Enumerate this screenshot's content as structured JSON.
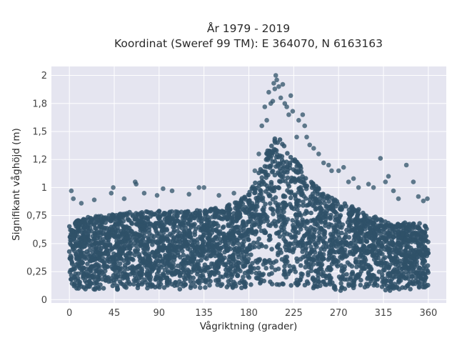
{
  "chart_data": {
    "type": "scatter",
    "title_line1": "År 1979 - 2019",
    "title_line2": "Koordinat (Sweref 99 TM): E 364070, N 6163163",
    "xlabel": "Vågriktning (grader)",
    "ylabel": "Signifikant våghöjd (m)",
    "xlim": [
      -18,
      378
    ],
    "ylim": [
      -0.03,
      2.08
    ],
    "x_ticks": [
      0,
      45,
      90,
      135,
      180,
      225,
      270,
      315,
      360
    ],
    "x_tick_labels": [
      "0",
      "45",
      "90",
      "135",
      "180",
      "225",
      "270",
      "315",
      "360"
    ],
    "y_ticks": [
      0,
      0.25,
      0.5,
      0.75,
      1,
      1.25,
      1.5,
      1.75,
      2
    ],
    "y_tick_labels": [
      "0",
      "0,25",
      "0,5",
      "0,75",
      "1",
      "1,2",
      "1,5",
      "1,8",
      "2"
    ],
    "grid": true,
    "legend": "none",
    "marker_color": "#2f5168",
    "background_color": "#e5e5f0",
    "envelope": {
      "x": [
        0,
        20,
        45,
        60,
        90,
        120,
        150,
        170,
        180,
        190,
        200,
        207,
        215,
        225,
        240,
        260,
        280,
        300,
        320,
        345,
        360
      ],
      "lower": [
        0.1,
        0.09,
        0.09,
        0.09,
        0.09,
        0.09,
        0.09,
        0.09,
        0.1,
        0.1,
        0.1,
        0.1,
        0.1,
        0.1,
        0.09,
        0.08,
        0.08,
        0.08,
        0.08,
        0.09,
        0.1
      ],
      "upper": [
        0.68,
        0.74,
        0.76,
        0.78,
        0.79,
        0.8,
        0.82,
        0.88,
        0.95,
        1.15,
        1.38,
        1.45,
        1.42,
        1.28,
        1.08,
        0.92,
        0.85,
        0.76,
        0.7,
        0.68,
        0.68
      ]
    },
    "outliers": [
      {
        "x": 2,
        "y": 0.97
      },
      {
        "x": 4,
        "y": 0.9
      },
      {
        "x": 12,
        "y": 0.86
      },
      {
        "x": 25,
        "y": 0.89
      },
      {
        "x": 42,
        "y": 0.95
      },
      {
        "x": 44,
        "y": 1.0
      },
      {
        "x": 55,
        "y": 0.9
      },
      {
        "x": 66,
        "y": 1.05
      },
      {
        "x": 67,
        "y": 1.03
      },
      {
        "x": 75,
        "y": 0.95
      },
      {
        "x": 88,
        "y": 0.93
      },
      {
        "x": 94,
        "y": 0.99
      },
      {
        "x": 103,
        "y": 0.97
      },
      {
        "x": 120,
        "y": 0.94
      },
      {
        "x": 130,
        "y": 1.0
      },
      {
        "x": 135,
        "y": 1.0
      },
      {
        "x": 150,
        "y": 0.93
      },
      {
        "x": 165,
        "y": 0.95
      },
      {
        "x": 186,
        "y": 1.15
      },
      {
        "x": 190,
        "y": 1.3
      },
      {
        "x": 193,
        "y": 1.55
      },
      {
        "x": 196,
        "y": 1.72
      },
      {
        "x": 198,
        "y": 1.6
      },
      {
        "x": 200,
        "y": 1.85
      },
      {
        "x": 202,
        "y": 1.75
      },
      {
        "x": 204,
        "y": 1.77
      },
      {
        "x": 205,
        "y": 1.93
      },
      {
        "x": 206,
        "y": 1.88
      },
      {
        "x": 207,
        "y": 2.0
      },
      {
        "x": 208,
        "y": 1.96
      },
      {
        "x": 210,
        "y": 1.9
      },
      {
        "x": 212,
        "y": 1.8
      },
      {
        "x": 214,
        "y": 1.92
      },
      {
        "x": 216,
        "y": 1.75
      },
      {
        "x": 218,
        "y": 1.72
      },
      {
        "x": 220,
        "y": 1.65
      },
      {
        "x": 222,
        "y": 1.82
      },
      {
        "x": 224,
        "y": 1.68
      },
      {
        "x": 228,
        "y": 1.45
      },
      {
        "x": 230,
        "y": 1.6
      },
      {
        "x": 234,
        "y": 1.65
      },
      {
        "x": 236,
        "y": 1.55
      },
      {
        "x": 238,
        "y": 1.45
      },
      {
        "x": 241,
        "y": 1.38
      },
      {
        "x": 245,
        "y": 1.35
      },
      {
        "x": 250,
        "y": 1.3
      },
      {
        "x": 255,
        "y": 1.22
      },
      {
        "x": 260,
        "y": 1.2
      },
      {
        "x": 263,
        "y": 1.15
      },
      {
        "x": 270,
        "y": 1.15
      },
      {
        "x": 275,
        "y": 1.18
      },
      {
        "x": 280,
        "y": 1.05
      },
      {
        "x": 285,
        "y": 1.08
      },
      {
        "x": 290,
        "y": 1.0
      },
      {
        "x": 300,
        "y": 1.03
      },
      {
        "x": 305,
        "y": 1.0
      },
      {
        "x": 312,
        "y": 1.26
      },
      {
        "x": 317,
        "y": 1.05
      },
      {
        "x": 320,
        "y": 1.1
      },
      {
        "x": 325,
        "y": 0.97
      },
      {
        "x": 330,
        "y": 0.9
      },
      {
        "x": 338,
        "y": 1.2
      },
      {
        "x": 345,
        "y": 1.05
      },
      {
        "x": 350,
        "y": 0.92
      },
      {
        "x": 355,
        "y": 0.88
      },
      {
        "x": 359,
        "y": 0.9
      }
    ]
  }
}
